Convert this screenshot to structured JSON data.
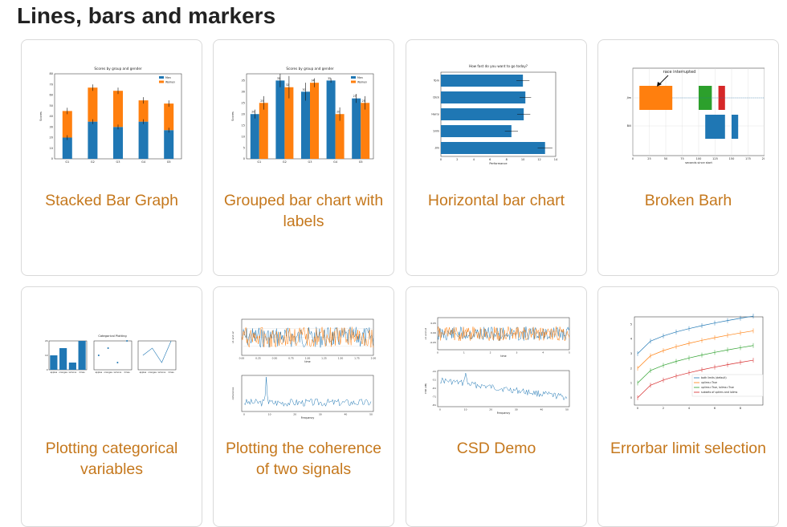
{
  "page": {
    "title": "Lines, bars and markers"
  },
  "colors": {
    "accent": "#c5781d",
    "blue": "#1f77b4",
    "orange": "#ff7f0e",
    "green": "#2ca02c",
    "red": "#d62728"
  },
  "cards": [
    {
      "caption": "Stacked Bar Graph",
      "icon": "stacked-bar-chart-thumbnail"
    },
    {
      "caption": "Grouped bar chart with labels",
      "icon": "grouped-bar-chart-thumbnail"
    },
    {
      "caption": "Horizontal bar chart",
      "icon": "horizontal-bar-chart-thumbnail"
    },
    {
      "caption": "Broken Barh",
      "icon": "broken-barh-thumbnail"
    },
    {
      "caption": "Plotting categorical variables",
      "icon": "categorical-plot-thumbnail"
    },
    {
      "caption": "Plotting the coherence of two signals",
      "icon": "coherence-plot-thumbnail"
    },
    {
      "caption": "CSD Demo",
      "icon": "csd-plot-thumbnail"
    },
    {
      "caption": "Errorbar limit selection",
      "icon": "errorbar-limits-thumbnail"
    }
  ],
  "chart_data": [
    {
      "type": "bar",
      "title": "Scores by group and gender",
      "ylabel": "Scores",
      "categories": [
        "G1",
        "G2",
        "G3",
        "G4",
        "G5"
      ],
      "series": [
        {
          "name": "Men",
          "values": [
            20,
            35,
            30,
            35,
            27
          ]
        },
        {
          "name": "Women",
          "values": [
            25,
            32,
            34,
            20,
            25
          ]
        }
      ],
      "stacked": true,
      "ylim": [
        0,
        80
      ],
      "yticks": [
        0,
        10,
        20,
        30,
        40,
        50,
        60,
        70,
        80
      ]
    },
    {
      "type": "bar",
      "title": "Scores by group and gender",
      "ylabel": "Scores",
      "categories": [
        "G1",
        "G2",
        "G3",
        "G4",
        "G5"
      ],
      "series": [
        {
          "name": "Men",
          "values": [
            20,
            35,
            30,
            35,
            27
          ]
        },
        {
          "name": "Women",
          "values": [
            25,
            32,
            34,
            20,
            25
          ]
        }
      ],
      "ylim": [
        0,
        38
      ],
      "yticks": [
        0,
        5,
        10,
        15,
        20,
        25,
        30,
        35
      ]
    },
    {
      "type": "bar",
      "orientation": "horizontal",
      "title": "How fast do you want to go today?",
      "xlabel": "Performance",
      "categories": [
        "Tom",
        "Dick",
        "Harry",
        "Slim",
        "Jim"
      ],
      "values": [
        10,
        10.3,
        10.1,
        8.6,
        12.7
      ],
      "xlim": [
        0,
        14
      ],
      "xticks": [
        0,
        2,
        4,
        6,
        8,
        10,
        12,
        14
      ]
    },
    {
      "type": "bar",
      "orientation": "horizontal",
      "subtype": "broken_barh",
      "xlabel": "seconds since start",
      "categories": [
        "Jim",
        "Bill"
      ],
      "annotation": "race interrupted",
      "xlim": [
        0,
        200
      ],
      "xticks": [
        0,
        25,
        50,
        75,
        100,
        125,
        150,
        175,
        200
      ]
    },
    {
      "type": "bar",
      "title": "Categorical Plotting",
      "categories": [
        "apples",
        "oranges",
        "lemons",
        "limes"
      ],
      "values": [
        10,
        15,
        5,
        20
      ],
      "ylim": [
        0,
        20
      ]
    },
    {
      "type": "line",
      "ylabel": "s1 and s2",
      "xlabel": "time",
      "ylabel2": "coherence",
      "xlabel2": "Frequency"
    },
    {
      "type": "line",
      "ylabel": "s1 and s2",
      "xlabel": "time",
      "ylabel2": "CSD (dB)",
      "xlabel2": "Frequency"
    },
    {
      "type": "line",
      "legend": [
        "both limits (default)",
        "uplims=True",
        "uplims=True, lolims=True",
        "subsets of uplims and lolims"
      ]
    }
  ]
}
